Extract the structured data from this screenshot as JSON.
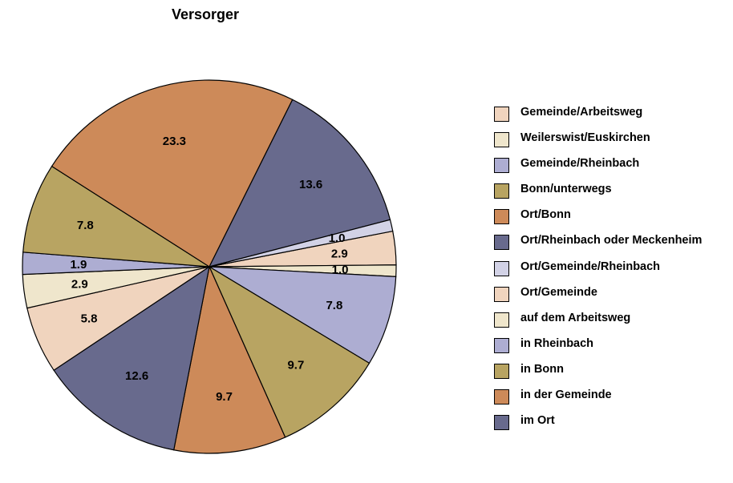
{
  "chart_data": {
    "type": "pie",
    "title": "Versorger",
    "slices": [
      {
        "label": "Gemeinde/Arbeitsweg",
        "value": 2.9,
        "color": "#F0D4BE"
      },
      {
        "label": "Weilerswist/Euskirchen",
        "value": 1.0,
        "color": "#EFE6CC"
      },
      {
        "label": "Gemeinde/Rheinbach",
        "value": 7.8,
        "color": "#ADADD2"
      },
      {
        "label": "Bonn/unterwegs",
        "value": 9.7,
        "color": "#B8A462"
      },
      {
        "label": "Ort/Bonn",
        "value": 9.7,
        "color": "#CD8A59"
      },
      {
        "label": "Ort/Rheinbach oder Meckenheim",
        "value": 12.6,
        "color": "#686A8D"
      },
      {
        "label": "Ort/Gemeinde/Rheinbach",
        "value": 0.0,
        "color": "#D2D2E6"
      },
      {
        "label": "Ort/Gemeinde",
        "value": 5.8,
        "color": "#F0D4BE"
      },
      {
        "label": "auf dem Arbeitsweg",
        "value": 2.9,
        "color": "#EFE6CC"
      },
      {
        "label": "in Rheinbach",
        "value": 1.9,
        "color": "#ADADD2"
      },
      {
        "label": "in Bonn",
        "value": 7.8,
        "color": "#B8A462"
      },
      {
        "label": "in der Gemeinde",
        "value": 23.3,
        "color": "#CD8A59"
      },
      {
        "label": "im Ort",
        "value": 13.6,
        "color": "#686A8D"
      },
      {
        "label": "",
        "value": 1.0,
        "color": "#D2D2E6"
      }
    ],
    "legend": {
      "placement": "right",
      "entries": [
        {
          "label": "Gemeinde/Arbeitsweg",
          "color": "#F0D4BE"
        },
        {
          "label": "Weilerswist/Euskirchen",
          "color": "#EFE6CC"
        },
        {
          "label": "Gemeinde/Rheinbach",
          "color": "#ADADD2"
        },
        {
          "label": "Bonn/unterwegs",
          "color": "#B8A462"
        },
        {
          "label": "Ort/Bonn",
          "color": "#CD8A59"
        },
        {
          "label": "Ort/Rheinbach oder Meckenheim",
          "color": "#686A8D"
        },
        {
          "label": "Ort/Gemeinde/Rheinbach",
          "color": "#D2D2E6"
        },
        {
          "label": "Ort/Gemeinde",
          "color": "#F0D4BE"
        },
        {
          "label": "auf dem Arbeitsweg",
          "color": "#EFE6CC"
        },
        {
          "label": "in Rheinbach",
          "color": "#ADADD2"
        },
        {
          "label": "in Bonn",
          "color": "#B8A462"
        },
        {
          "label": "in der Gemeinde",
          "color": "#CD8A59"
        },
        {
          "label": "im Ort",
          "color": "#686A8D"
        }
      ]
    }
  }
}
